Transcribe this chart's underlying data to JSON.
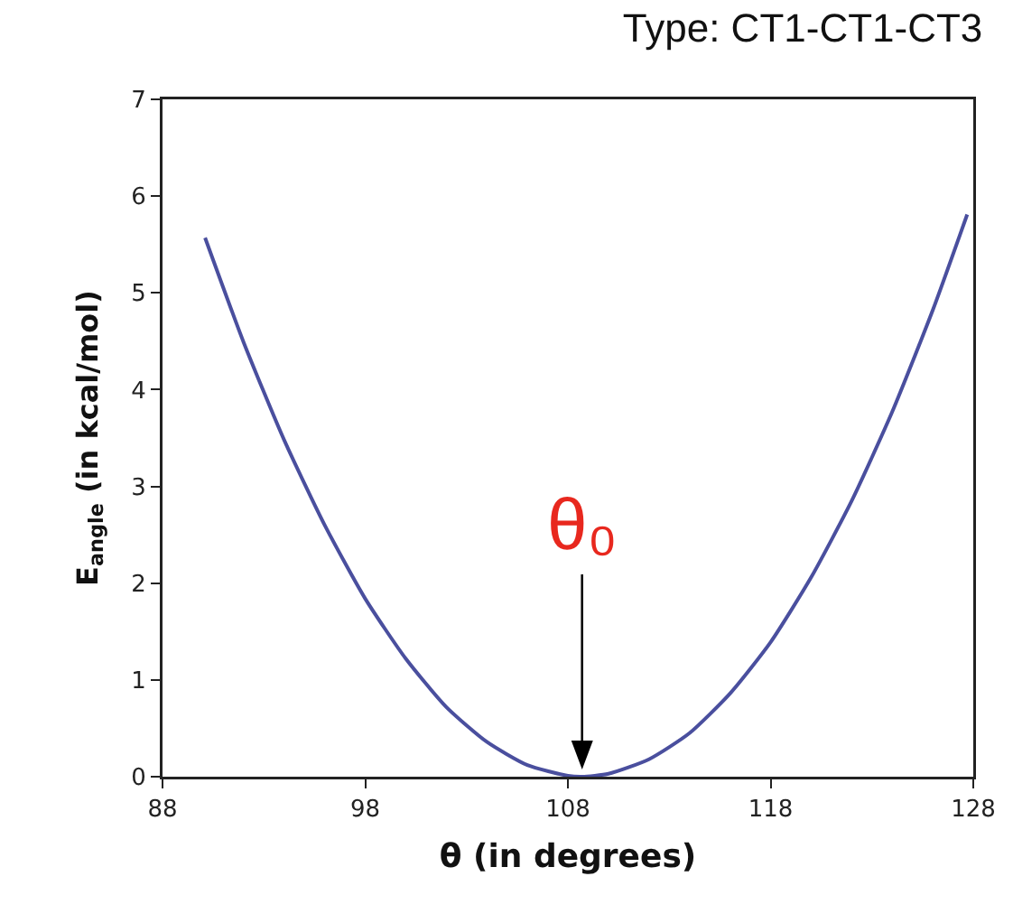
{
  "chart_data": {
    "type": "line",
    "title": "Type: CT1-CT1-CT3",
    "xlabel": "θ (in degrees)",
    "ylabel": "E$_{angle}$ (in kcal/mol)",
    "x": [
      90.1,
      92,
      94,
      96,
      98,
      100,
      102,
      104,
      106,
      108,
      108.7,
      110,
      112,
      114,
      116,
      118,
      120,
      122,
      124,
      126,
      127.7
    ],
    "series": [
      {
        "color": "#4a4f9e",
        "values": [
          5.57,
          4.49,
          3.48,
          2.6,
          1.84,
          1.22,
          0.72,
          0.36,
          0.12,
          0.01,
          0,
          0.03,
          0.18,
          0.45,
          0.86,
          1.39,
          2.06,
          2.85,
          3.77,
          4.82,
          5.81
        ]
      }
    ],
    "xlim": [
      88,
      128
    ],
    "xticks": [
      88,
      98,
      108,
      118,
      128
    ],
    "ylim": [
      0,
      7
    ],
    "yticks": [
      0,
      1,
      2,
      3,
      4,
      5,
      6,
      7
    ],
    "grid": false,
    "marker": "none",
    "line_style": "solid",
    "annotations": [
      {
        "text": "θ₀",
        "x": 108.7,
        "y": 0
      }
    ]
  }
}
